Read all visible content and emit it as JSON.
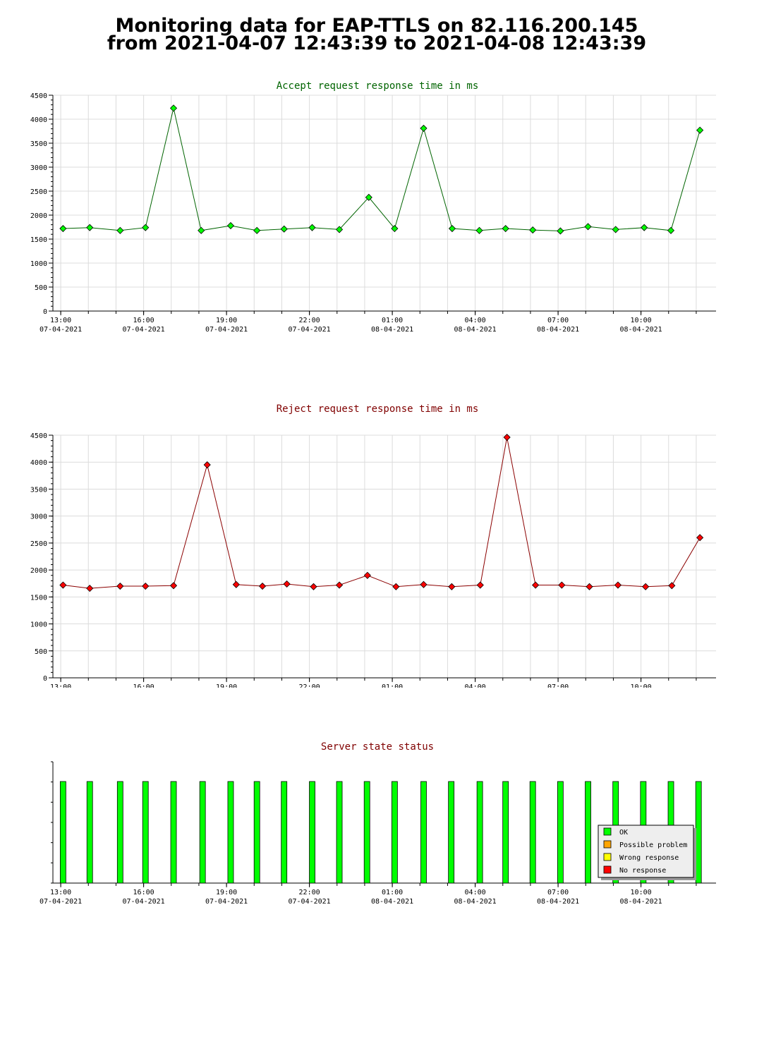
{
  "page": {
    "title_line1": "Monitoring data for EAP-TTLS on 82.116.200.145",
    "title_line2": "from 2021-04-07 12:43:39 to 2021-04-08 12:43:39"
  },
  "colors": {
    "accept_line": "#006400",
    "accept_marker": "#00ff00",
    "accept_title": "#006400",
    "reject_line": "#8b0000",
    "reject_marker": "#ff0000",
    "reject_title": "#800000",
    "status_title": "#800000",
    "grid": "#dcdcdc",
    "status_ok": "#00ff00",
    "status_possible_problem": "#ffa500",
    "status_wrong_response": "#ffff00",
    "status_no_response": "#ff0000"
  },
  "x_ticks": [
    {
      "time": "13:00",
      "date": "07-04-2021"
    },
    {
      "time": "16:00",
      "date": "07-04-2021"
    },
    {
      "time": "19:00",
      "date": "07-04-2021"
    },
    {
      "time": "22:00",
      "date": "07-04-2021"
    },
    {
      "time": "01:00",
      "date": "08-04-2021"
    },
    {
      "time": "04:00",
      "date": "08-04-2021"
    },
    {
      "time": "07:00",
      "date": "08-04-2021"
    },
    {
      "time": "10:00",
      "date": "08-04-2021"
    }
  ],
  "chart_data": [
    {
      "type": "line",
      "title": "Accept request response time in ms",
      "ylim": [
        0,
        4500
      ],
      "yticks": [
        0,
        500,
        1000,
        1500,
        2000,
        2500,
        3000,
        3500,
        4000,
        4500
      ],
      "x_range": [
        "2021-04-07 12:43",
        "2021-04-08 12:43"
      ],
      "grid": true,
      "series": [
        {
          "x": [
            "2021-04-07 13:05",
            "2021-04-07 14:03",
            "2021-04-07 15:09",
            "2021-04-07 16:04",
            "2021-04-07 17:05",
            "2021-04-07 18:05",
            "2021-04-07 19:09",
            "2021-04-07 20:06",
            "2021-04-07 21:05",
            "2021-04-07 22:06",
            "2021-04-07 23:05",
            "2021-04-08 00:09",
            "2021-04-08 01:05",
            "2021-04-08 02:08",
            "2021-04-08 03:10",
            "2021-04-08 04:09",
            "2021-04-08 05:06",
            "2021-04-08 06:05",
            "2021-04-08 07:05",
            "2021-04-08 08:05",
            "2021-04-08 09:05",
            "2021-04-08 10:07",
            "2021-04-08 11:05",
            "2021-04-08 12:08"
          ],
          "values": [
            1720,
            1740,
            1680,
            1740,
            4230,
            1680,
            1780,
            1680,
            1710,
            1740,
            1700,
            2370,
            1720,
            3810,
            1720,
            1680,
            1720,
            1690,
            1670,
            1760,
            1700,
            1740,
            1680,
            3770
          ]
        }
      ]
    },
    {
      "type": "line",
      "title": "Reject request response time in ms",
      "ylim": [
        0,
        4500
      ],
      "yticks": [
        0,
        500,
        1000,
        1500,
        2000,
        2500,
        3000,
        3500,
        4000,
        4500
      ],
      "x_range": [
        "2021-04-07 12:43",
        "2021-04-08 12:43"
      ],
      "grid": true,
      "series": [
        {
          "x": [
            "2021-04-07 13:05",
            "2021-04-07 14:03",
            "2021-04-07 15:09",
            "2021-04-07 16:04",
            "2021-04-07 17:05",
            "2021-04-07 18:18",
            "2021-04-07 19:21",
            "2021-04-07 20:18",
            "2021-04-07 21:11",
            "2021-04-07 22:09",
            "2021-04-07 23:05",
            "2021-04-08 00:06",
            "2021-04-08 01:08",
            "2021-04-08 02:08",
            "2021-04-08 03:09",
            "2021-04-08 04:11",
            "2021-04-08 05:09",
            "2021-04-08 06:11",
            "2021-04-08 07:08",
            "2021-04-08 08:08",
            "2021-04-08 09:10",
            "2021-04-08 10:10",
            "2021-04-08 11:07",
            "2021-04-08 12:08"
          ],
          "values": [
            1720,
            1660,
            1700,
            1700,
            1710,
            3950,
            1730,
            1700,
            1740,
            1690,
            1720,
            1900,
            1690,
            1730,
            1690,
            1720,
            4460,
            1720,
            1720,
            1690,
            1720,
            1690,
            1710,
            2600
          ]
        }
      ]
    },
    {
      "type": "bar",
      "title": "Server state status",
      "x_range": [
        "2021-04-07 12:43",
        "2021-04-08 12:43"
      ],
      "x": [
        "2021-04-07 13:05",
        "2021-04-07 14:03",
        "2021-04-07 15:09",
        "2021-04-07 16:04",
        "2021-04-07 17:05",
        "2021-04-07 18:08",
        "2021-04-07 19:09",
        "2021-04-07 20:06",
        "2021-04-07 21:05",
        "2021-04-07 22:06",
        "2021-04-07 23:05",
        "2021-04-08 00:05",
        "2021-04-08 01:05",
        "2021-04-08 02:08",
        "2021-04-08 03:08",
        "2021-04-08 04:10",
        "2021-04-08 05:06",
        "2021-04-08 06:05",
        "2021-04-08 07:05",
        "2021-04-08 08:05",
        "2021-04-08 09:05",
        "2021-04-08 10:05",
        "2021-04-08 11:05",
        "2021-04-08 12:05"
      ],
      "states": [
        "OK",
        "OK",
        "OK",
        "OK",
        "OK",
        "OK",
        "OK",
        "OK",
        "OK",
        "OK",
        "OK",
        "OK",
        "OK",
        "OK",
        "OK",
        "OK",
        "OK",
        "OK",
        "OK",
        "OK",
        "OK",
        "OK",
        "OK",
        "OK"
      ],
      "legend": {
        "placement": "bottom-right",
        "items": [
          {
            "label": "OK",
            "color": "#00ff00"
          },
          {
            "label": "Possible problem",
            "color": "#ffa500"
          },
          {
            "label": "Wrong response",
            "color": "#ffff00"
          },
          {
            "label": "No response",
            "color": "#ff0000"
          }
        ]
      }
    }
  ]
}
